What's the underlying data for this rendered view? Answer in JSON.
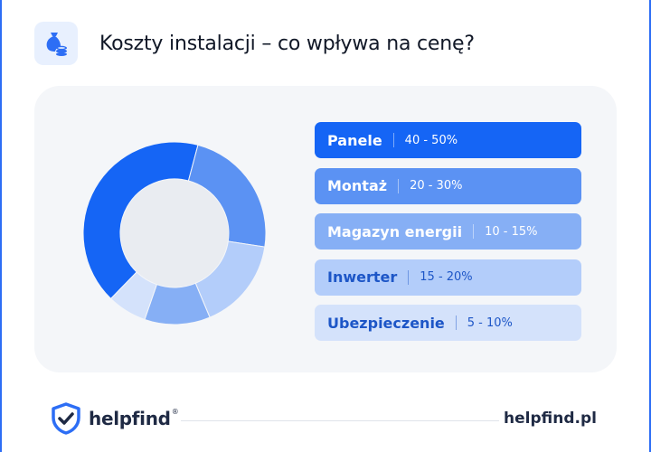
{
  "header": {
    "title": "Koszty instalacji – co wpływa na cenę?",
    "icon": "money-bag-coins-icon"
  },
  "chart_data": {
    "type": "pie",
    "title": "",
    "categories": [
      "Panele",
      "Montaż",
      "Magazyn energii",
      "Inwerter",
      "Ubezpieczenie"
    ],
    "ranges": [
      "40 - 50%",
      "20 - 30%",
      "10 - 15%",
      "15 - 20%",
      "5 - 10%"
    ],
    "values": [
      45,
      25,
      12.5,
      17.5,
      7.5
    ],
    "colors": [
      "#1565f5",
      "#5b92f3",
      "#86aff5",
      "#b3cdfa",
      "#d4e2fb"
    ],
    "text_colors": [
      "#ffffff",
      "#ffffff",
      "#ffffff",
      "#1d56c7",
      "#1d56c7"
    ]
  },
  "footer": {
    "brand": "helpfind",
    "registered": "®",
    "url": "helpfind.pl",
    "shield_icon": "shield-check-icon"
  }
}
